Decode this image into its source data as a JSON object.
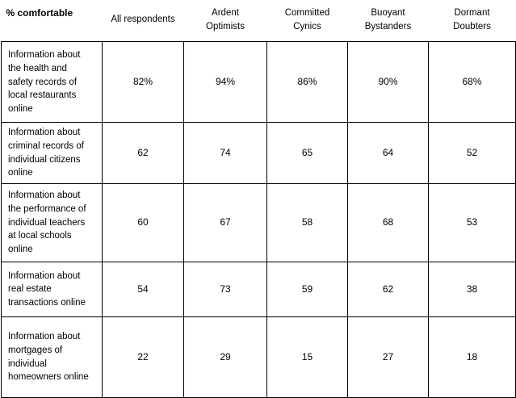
{
  "chart_data": {
    "type": "table",
    "title": "",
    "corner_label": "% comfortable",
    "columns": [
      "All respondents",
      "Ardent Optimists",
      "Committed Cynics",
      "Buoyant Bystanders",
      "Dormant Doubters"
    ],
    "rows": [
      {
        "label": "Information about the health and safety records of local restaurants online",
        "values": [
          "82%",
          "94%",
          "86%",
          "90%",
          "68%"
        ]
      },
      {
        "label": "Information about criminal records of individual citizens online",
        "values": [
          "62",
          "74",
          "65",
          "64",
          "52"
        ]
      },
      {
        "label": "Information about the performance of individual teachers at local schools online",
        "values": [
          "60",
          "67",
          "58",
          "68",
          "53"
        ]
      },
      {
        "label": "Information about real estate transactions online",
        "values": [
          "54",
          "73",
          "59",
          "62",
          "38"
        ]
      },
      {
        "label": "Information about mortgages of individual homeowners online",
        "values": [
          "22",
          "29",
          "15",
          "27",
          "18"
        ]
      }
    ],
    "layout": {
      "grid": true,
      "border_color": "#000000",
      "background": "#ffffff"
    }
  }
}
